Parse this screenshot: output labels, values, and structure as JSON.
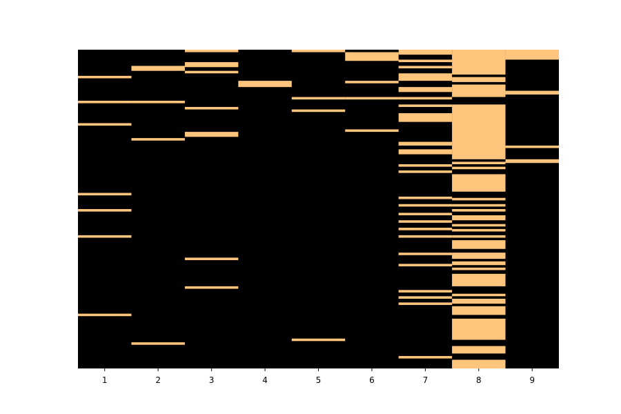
{
  "chart_data": {
    "type": "heatmap",
    "title": "",
    "xlabel": "",
    "ylabel": "",
    "categories": [
      "1",
      "2",
      "3",
      "4",
      "5",
      "6",
      "7",
      "8",
      "9"
    ],
    "n_rows": 256,
    "y_ticks_visible": false,
    "grid": false,
    "legend": "none",
    "colors": {
      "on": "#ffc57c",
      "off": "#000000",
      "axis": "#000000",
      "background": "#ffffff"
    },
    "on_segments": [
      {
        "column": "1",
        "rows": [
          [
            21,
            23
          ],
          [
            41,
            43
          ],
          [
            59,
            61
          ],
          [
            115,
            117
          ],
          [
            128,
            130
          ],
          [
            149,
            151
          ],
          [
            212,
            214
          ]
        ]
      },
      {
        "column": "2",
        "rows": [
          [
            13,
            17
          ],
          [
            41,
            43
          ],
          [
            71,
            73
          ],
          [
            235,
            237
          ]
        ]
      },
      {
        "column": "3",
        "rows": [
          [
            0,
            2
          ],
          [
            10,
            14
          ],
          [
            17,
            19
          ],
          [
            46,
            48
          ],
          [
            66,
            70
          ],
          [
            167,
            169
          ],
          [
            190,
            192
          ]
        ]
      },
      {
        "column": "4",
        "rows": [
          [
            25,
            30
          ]
        ]
      },
      {
        "column": "5",
        "rows": [
          [
            0,
            2
          ],
          [
            38,
            40
          ],
          [
            48,
            50
          ],
          [
            232,
            234
          ]
        ]
      },
      {
        "column": "6",
        "rows": [
          [
            2,
            9
          ],
          [
            25,
            27
          ],
          [
            38,
            40
          ],
          [
            64,
            66
          ]
        ]
      },
      {
        "column": "7",
        "rows": [
          [
            0,
            4
          ],
          [
            8,
            10
          ],
          [
            13,
            15
          ],
          [
            19,
            25
          ],
          [
            30,
            34
          ],
          [
            38,
            40
          ],
          [
            44,
            46
          ],
          [
            51,
            58
          ],
          [
            74,
            77
          ],
          [
            80,
            84
          ],
          [
            92,
            94
          ],
          [
            97,
            99
          ],
          [
            118,
            120
          ],
          [
            124,
            126
          ],
          [
            131,
            133
          ],
          [
            137,
            139
          ],
          [
            143,
            145
          ],
          [
            149,
            151
          ],
          [
            163,
            165
          ],
          [
            172,
            174
          ],
          [
            193,
            195
          ],
          [
            198,
            200
          ],
          [
            203,
            205
          ],
          [
            246,
            248
          ]
        ]
      },
      {
        "column": "8",
        "rows": [
          [
            0,
            20
          ],
          [
            22,
            26
          ],
          [
            28,
            38
          ],
          [
            44,
            88
          ],
          [
            90,
            92
          ],
          [
            94,
            96
          ],
          [
            100,
            114
          ],
          [
            119,
            121
          ],
          [
            124,
            126
          ],
          [
            128,
            130
          ],
          [
            133,
            137
          ],
          [
            140,
            142
          ],
          [
            144,
            146
          ],
          [
            149,
            151
          ],
          [
            153,
            160
          ],
          [
            163,
            168
          ],
          [
            170,
            173
          ],
          [
            175,
            177
          ],
          [
            180,
            190
          ],
          [
            196,
            198
          ],
          [
            200,
            204
          ],
          [
            206,
            213
          ],
          [
            216,
            233
          ],
          [
            238,
            244
          ],
          [
            249,
            256
          ]
        ]
      },
      {
        "column": "9",
        "rows": [
          [
            0,
            8
          ],
          [
            33,
            36
          ],
          [
            77,
            79
          ],
          [
            88,
            91
          ]
        ]
      }
    ]
  }
}
